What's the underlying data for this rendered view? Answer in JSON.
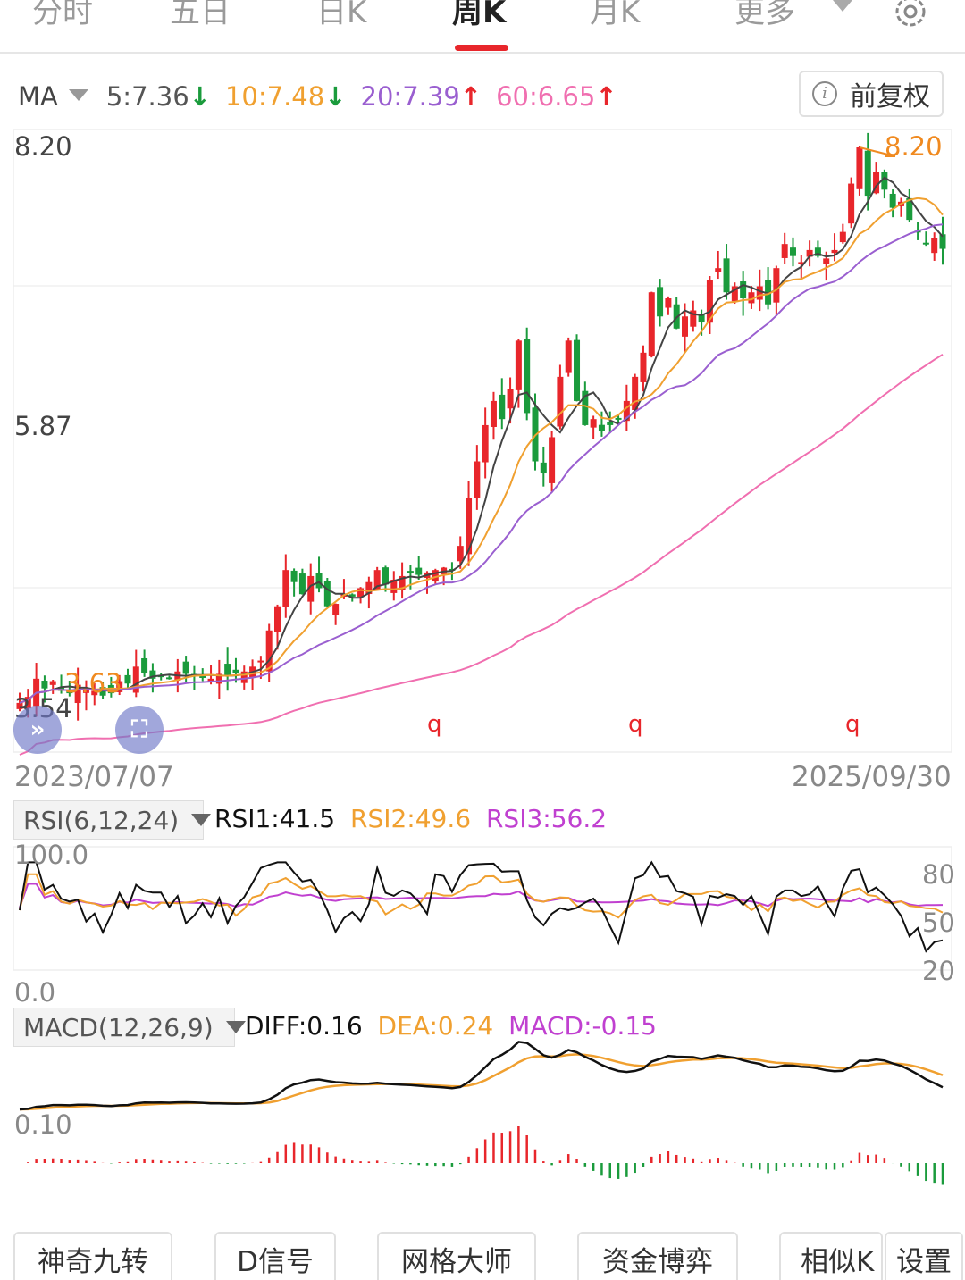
{
  "tabs": [
    {
      "label": "分时"
    },
    {
      "label": "五日"
    },
    {
      "label": "日K"
    },
    {
      "label": "周K"
    },
    {
      "label": "月K"
    },
    {
      "label": "更多"
    }
  ],
  "active_tab": "周K",
  "ma_legend": {
    "label": "MA",
    "ma5": {
      "text": "5:7.36",
      "arrow": "↓",
      "color": "#555555"
    },
    "ma10": {
      "text": "10:7.48",
      "arrow": "↓",
      "color": "#f0a030"
    },
    "ma20": {
      "text": "20:7.39",
      "arrow": "↑",
      "color": "#9a5fd0"
    },
    "ma60": {
      "text": "60:6.65",
      "arrow": "↑",
      "color": "#f06fb0"
    }
  },
  "adjust_button": "前复权",
  "price_axis": {
    "top": "8.20",
    "mid": "5.87",
    "bottom": "3.54"
  },
  "high_marker": "8.20",
  "low_marker": "3.63",
  "event_markers": [
    "q",
    "q",
    "q"
  ],
  "date_range": {
    "start": "2023/07/07",
    "end": "2025/09/30"
  },
  "rsi": {
    "selector": "RSI(6,12,24)",
    "rsi1": "RSI1:41.5",
    "rsi2": "RSI2:49.6",
    "rsi3": "RSI3:56.2",
    "axis_top": "100.0",
    "axis_bottom": "0.0",
    "right_80": "80",
    "right_50": "50",
    "right_20": "20"
  },
  "macd": {
    "selector": "MACD(12,26,9)",
    "diff": "DIFF:0.16",
    "dea": "DEA:0.24",
    "macd": "MACD:-0.15",
    "axis_label": "0.10"
  },
  "bottom_buttons": [
    "神奇九转",
    "D信号",
    "网格大师",
    "资金博弈",
    "相似K",
    "设置"
  ],
  "colors": {
    "up": "#e8262b",
    "down": "#1a9b3c",
    "ma5": "#444444",
    "ma10": "#f0a030",
    "ma20": "#9a5fd0",
    "ma60": "#f06fb0",
    "rsi1": "#111111",
    "rsi2": "#f0a030",
    "rsi3": "#c040d0"
  },
  "chart_data": {
    "type": "candlestick",
    "title": "周K",
    "ylim": [
      3.54,
      8.2
    ],
    "x_start": "2023/07/07",
    "x_end": "2025/09/30",
    "close_approx": [
      3.6,
      3.65,
      3.8,
      3.72,
      3.78,
      3.7,
      3.68,
      3.75,
      3.72,
      3.7,
      3.66,
      3.68,
      3.78,
      3.76,
      3.9,
      3.85,
      3.8,
      3.82,
      3.8,
      3.86,
      3.84,
      3.83,
      3.82,
      3.8,
      3.84,
      3.83,
      3.85,
      3.86,
      3.9,
      3.95,
      4.2,
      4.4,
      4.7,
      4.6,
      4.5,
      4.65,
      4.55,
      4.4,
      4.42,
      4.5,
      4.48,
      4.55,
      4.6,
      4.7,
      4.58,
      4.62,
      4.65,
      4.68,
      4.66,
      4.68,
      4.7,
      4.72,
      4.7,
      4.9,
      5.3,
      5.6,
      5.9,
      6.1,
      5.95,
      6.2,
      6.6,
      6.0,
      5.6,
      5.5,
      5.8,
      6.3,
      6.6,
      6.1,
      5.9,
      5.95,
      5.85,
      5.9,
      5.95,
      6.1,
      6.3,
      6.5,
      7.0,
      6.8,
      6.95,
      6.7,
      6.8,
      6.85,
      6.75,
      7.1,
      7.2,
      7.0,
      7.05,
      6.95,
      7.0,
      7.05,
      6.9,
      7.2,
      7.4,
      7.3,
      7.25,
      7.35,
      7.3,
      7.28,
      7.35,
      7.5,
      7.9,
      8.2,
      7.8,
      8.0,
      7.85,
      7.7,
      7.75,
      7.6,
      7.5,
      7.4,
      7.45,
      7.36
    ],
    "rsi_series": [
      {
        "name": "RSI1",
        "last": 41.5
      },
      {
        "name": "RSI2",
        "last": 49.6
      },
      {
        "name": "RSI3",
        "last": 56.2
      }
    ],
    "macd_series": [
      {
        "name": "DIFF",
        "last": 0.16
      },
      {
        "name": "DEA",
        "last": 0.24
      },
      {
        "name": "MACD",
        "last": -0.15
      }
    ],
    "ma": [
      {
        "name": "MA5",
        "last": 7.36
      },
      {
        "name": "MA10",
        "last": 7.48
      },
      {
        "name": "MA20",
        "last": 7.39
      },
      {
        "name": "MA60",
        "last": 6.65
      }
    ]
  }
}
